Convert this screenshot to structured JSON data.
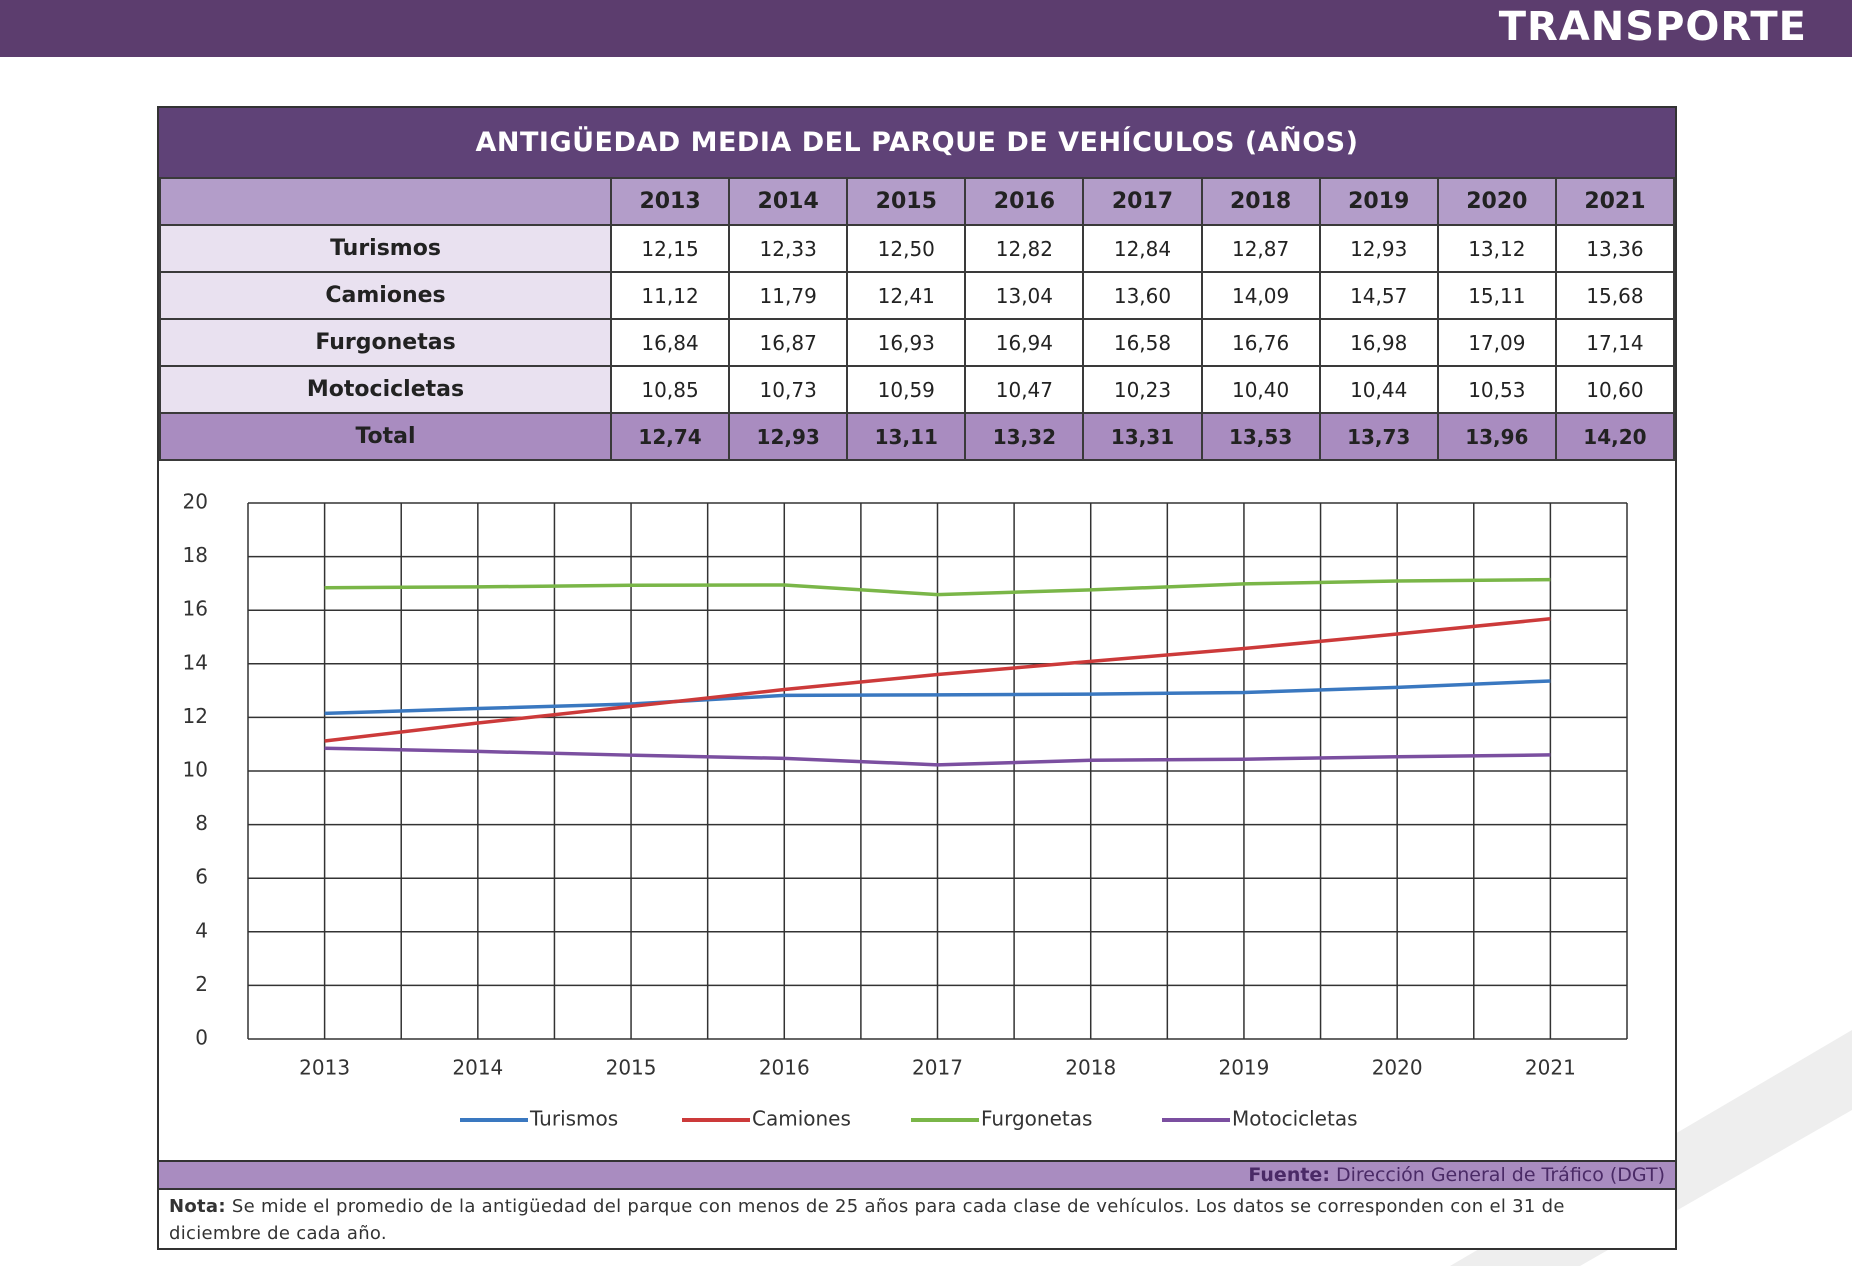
{
  "header": {
    "title": "TRANSPORTE"
  },
  "table": {
    "title": "ANTIGÜEDAD MEDIA DEL PARQUE DE VEHÍCULOS (AÑOS)",
    "columns": [
      "2013",
      "2014",
      "2015",
      "2016",
      "2017",
      "2018",
      "2019",
      "2020",
      "2021"
    ],
    "rows": [
      {
        "label": "Turismos",
        "cells": [
          "12,15",
          "12,33",
          "12,50",
          "12,82",
          "12,84",
          "12,87",
          "12,93",
          "13,12",
          "13,36"
        ]
      },
      {
        "label": "Camiones",
        "cells": [
          "11,12",
          "11,79",
          "12,41",
          "13,04",
          "13,60",
          "14,09",
          "14,57",
          "15,11",
          "15,68"
        ]
      },
      {
        "label": "Furgonetas",
        "cells": [
          "16,84",
          "16,87",
          "16,93",
          "16,94",
          "16,58",
          "16,76",
          "16,98",
          "17,09",
          "17,14"
        ]
      },
      {
        "label": "Motocicletas",
        "cells": [
          "10,85",
          "10,73",
          "10,59",
          "10,47",
          "10,23",
          "10,40",
          "10,44",
          "10,53",
          "10,60"
        ]
      },
      {
        "label": "Total",
        "cells": [
          "12,74",
          "12,93",
          "13,11",
          "13,32",
          "13,31",
          "13,53",
          "13,73",
          "13,96",
          "14,20"
        ]
      }
    ]
  },
  "chart_data": {
    "type": "line",
    "categories": [
      "2013",
      "2014",
      "2015",
      "2016",
      "2017",
      "2018",
      "2019",
      "2020",
      "2021"
    ],
    "series": [
      {
        "name": "Turismos",
        "color": "#3a78c0",
        "values": [
          12.15,
          12.33,
          12.5,
          12.82,
          12.84,
          12.87,
          12.93,
          13.12,
          13.36
        ]
      },
      {
        "name": "Camiones",
        "color": "#cc3a3a",
        "values": [
          11.12,
          11.79,
          12.41,
          13.04,
          13.6,
          14.09,
          14.57,
          15.11,
          15.68
        ]
      },
      {
        "name": "Furgonetas",
        "color": "#7ab648",
        "values": [
          16.84,
          16.87,
          16.93,
          16.94,
          16.58,
          16.76,
          16.98,
          17.09,
          17.14
        ]
      },
      {
        "name": "Motocicletas",
        "color": "#7b4fa0",
        "values": [
          10.85,
          10.73,
          10.59,
          10.47,
          10.23,
          10.4,
          10.44,
          10.53,
          10.6
        ]
      }
    ],
    "ylim": [
      0,
      20
    ],
    "yticks": [
      0,
      2,
      4,
      6,
      8,
      10,
      12,
      14,
      16,
      18,
      20
    ],
    "grid": true,
    "legend": "bottom"
  },
  "source": {
    "label": "Fuente:",
    "text": "Dirección General de Tráfico (DGT)"
  },
  "note": {
    "label": "Nota:",
    "text": "Se mide el promedio de la antigüedad del parque con menos de 25 años para cada clase de vehículos. Los datos se corresponden con el 31 de diciembre de cada año."
  }
}
